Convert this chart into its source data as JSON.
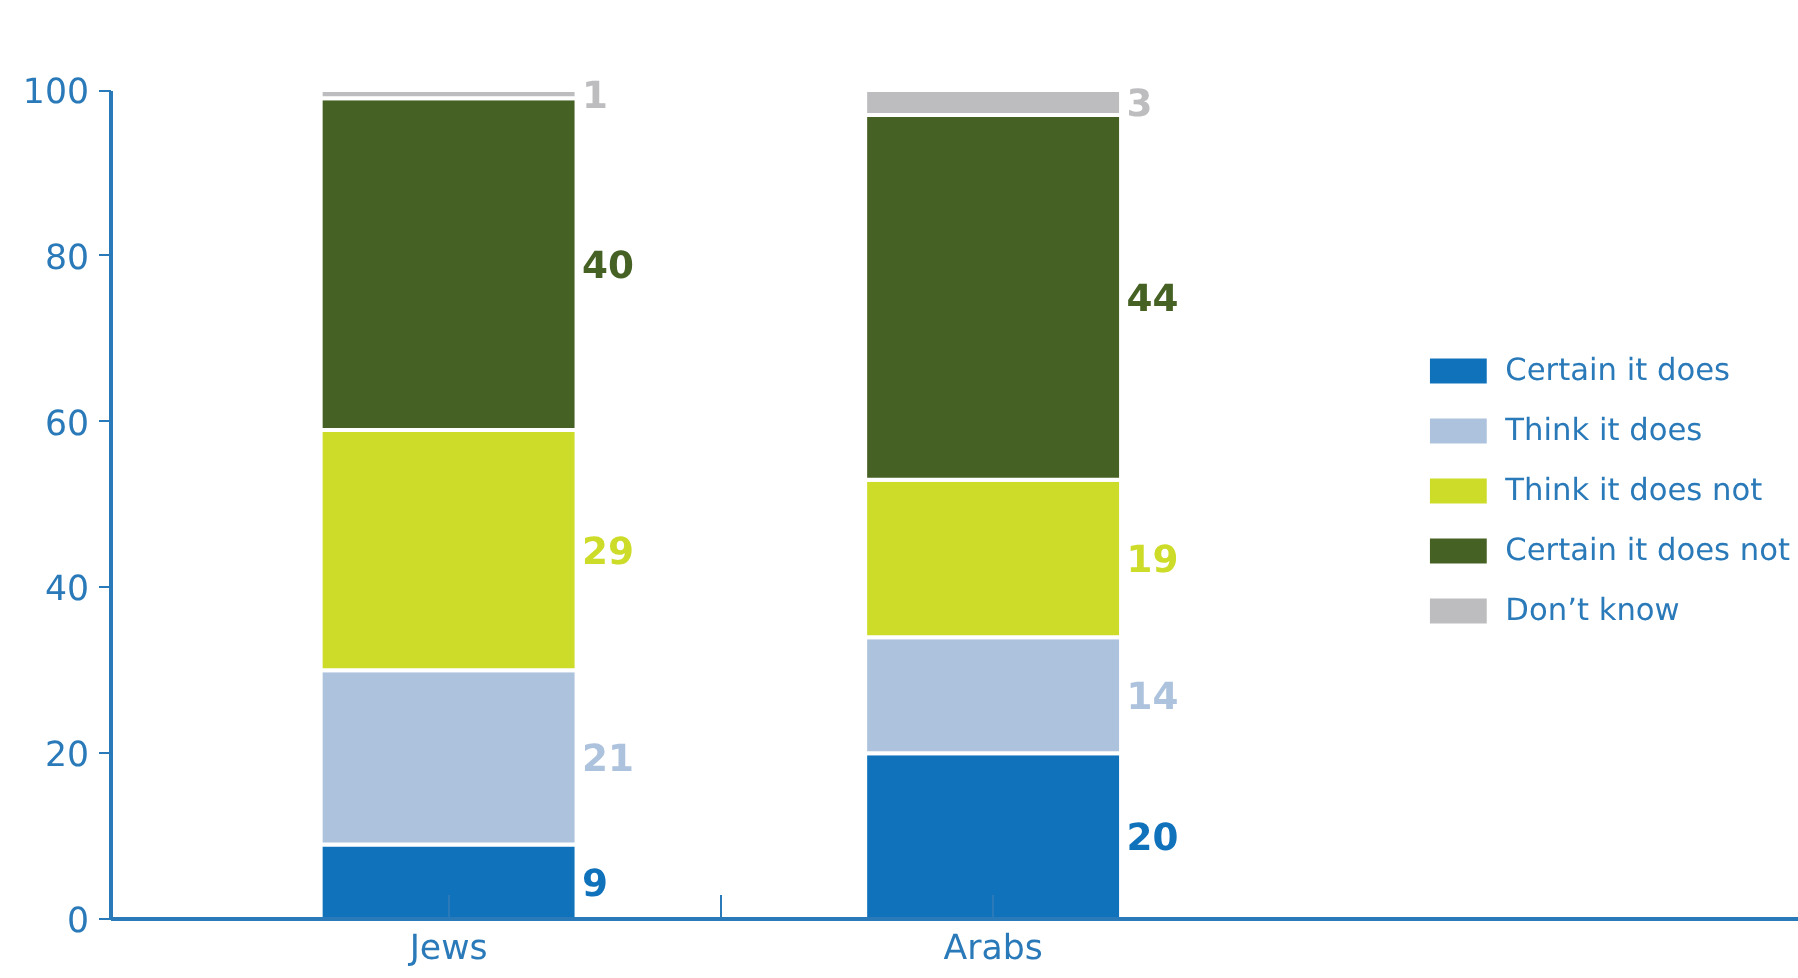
{
  "chart_data": {
    "type": "bar",
    "stacked": true,
    "categories": [
      "Jews",
      "Arabs"
    ],
    "series": [
      {
        "name": "Certain it does",
        "color": "#1172bc",
        "values": [
          9,
          20
        ]
      },
      {
        "name": "Think it does",
        "color": "#adc2dc",
        "values": [
          21,
          14
        ]
      },
      {
        "name": "Think it does not",
        "color": "#cddc29",
        "values": [
          29,
          19
        ]
      },
      {
        "name": "Certain it does not",
        "color": "#466124",
        "values": [
          40,
          44
        ]
      },
      {
        "name": "Don’t know",
        "color": "#bdbdc0",
        "values": [
          1,
          3
        ]
      }
    ],
    "ylim": [
      0,
      100
    ],
    "yticks": [
      0,
      20,
      40,
      60,
      80,
      100
    ],
    "grid": false,
    "legend": "right",
    "data_labels": true
  }
}
